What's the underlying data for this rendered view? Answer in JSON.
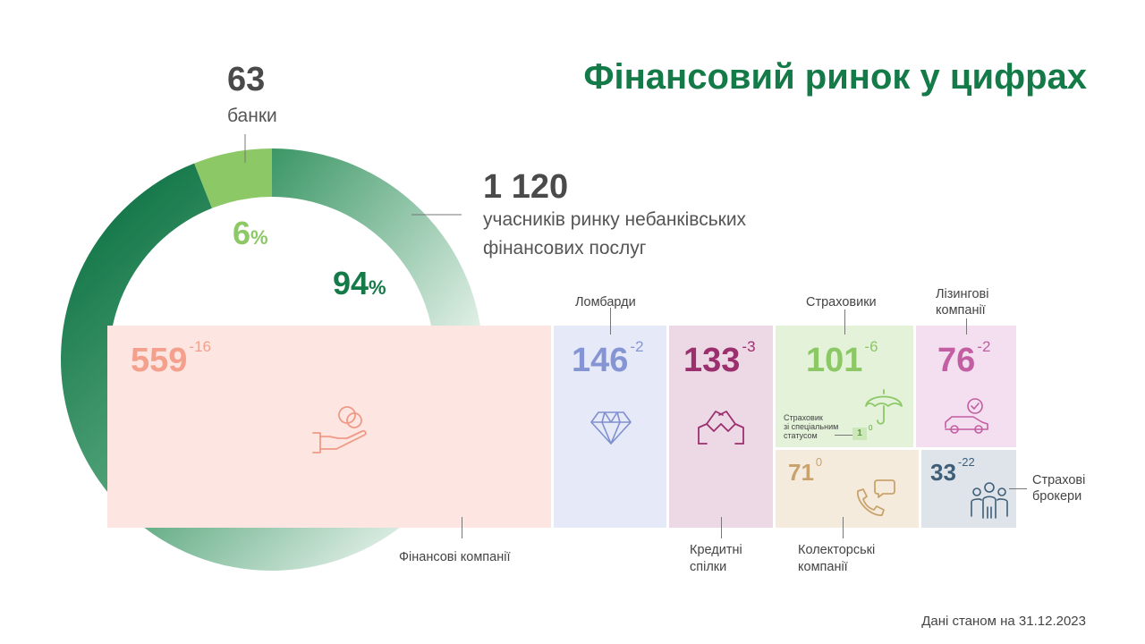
{
  "title": "Фінансовий ринок у цифрах",
  "banks": {
    "count": "63",
    "label": "банки",
    "share": "6",
    "share_unit": "%"
  },
  "nonbank": {
    "count": "1 120",
    "label_line1": "учасників ринку небанківських",
    "label_line2": "фінансових послуг",
    "share": "94",
    "share_unit": "%"
  },
  "tiles": {
    "fin_companies": {
      "value": "559",
      "change": "-16",
      "label": "Фінансові компанії"
    },
    "pawnshops": {
      "value": "146",
      "change": "-2",
      "label": "Ломбарди"
    },
    "credit_unions": {
      "value": "133",
      "change": "-3",
      "label_line1": "Кредитні",
      "label_line2": "спілки"
    },
    "insurers": {
      "value": "101",
      "change": "-6",
      "label": "Страховики",
      "special_line1": "Страховик",
      "special_line2": "зі спеціальним",
      "special_line3": "статусом",
      "special_value": "1",
      "special_change": "0"
    },
    "leasing": {
      "value": "76",
      "change": "-2",
      "label_line1": "Лізингові",
      "label_line2": "компанії"
    },
    "collectors": {
      "value": "71",
      "change": "0",
      "label_line1": "Колекторські",
      "label_line2": "компанії"
    },
    "brokers": {
      "value": "33",
      "change": "-22",
      "label_line1": "Страхові",
      "label_line2": "брокери"
    }
  },
  "footer": "Дані станом на 31.12.2023",
  "chart_data": {
    "type": "pie",
    "title": "Фінансовий ринок у цифрах",
    "slices": [
      {
        "name": "банки",
        "count": 63,
        "percent": 6
      },
      {
        "name": "учасників ринку небанківських фінансових послуг",
        "count": 1120,
        "percent": 94
      }
    ],
    "breakdown": {
      "type": "treemap",
      "categories": [
        "Фінансові компанії",
        "Ломбарди",
        "Кредитні спілки",
        "Страховики",
        "Лізингові компанії",
        "Колекторські компанії",
        "Страхові брокери",
        "Страховик зі спеціальним статусом"
      ],
      "values": [
        559,
        146,
        133,
        101,
        76,
        71,
        33,
        1
      ],
      "changes": [
        -16,
        -2,
        -3,
        -6,
        -2,
        0,
        -22,
        0
      ]
    }
  },
  "colors": {
    "title": "#137a48",
    "banks": "#8cc866",
    "nonbank_dark": "#1b7d4e",
    "fin_companies": "#f7a08a",
    "pawnshops": "#7e8fd0",
    "credit_unions": "#9c2f6e",
    "insurers": "#8cc866",
    "leasing": "#c25ea1",
    "collectors": "#c9a36d",
    "brokers": "#3f5e78"
  },
  "icons": [
    "hand-coins-icon",
    "diamond-icon",
    "handshake-icon",
    "umbrella-icon",
    "car-check-icon",
    "phone-chat-icon",
    "people-group-icon"
  ]
}
